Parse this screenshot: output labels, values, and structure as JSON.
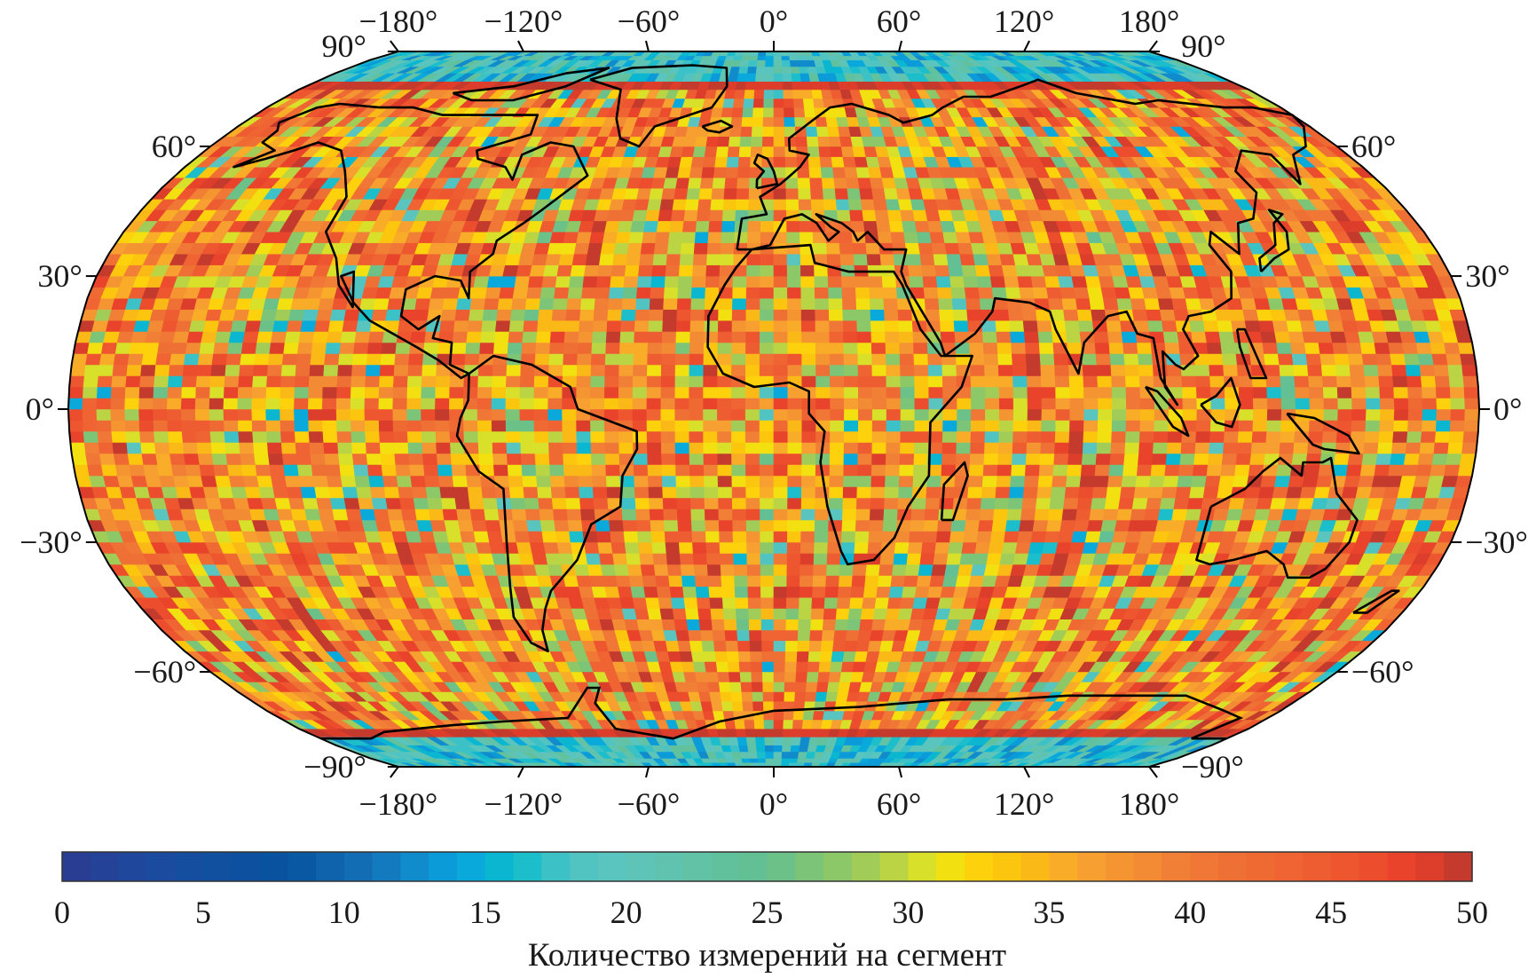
{
  "chart_data": {
    "type": "heatmap",
    "projection": "Robinson",
    "grid": false,
    "lon_ticks": [
      "−180°",
      "−120°",
      "−60°",
      "0°",
      "60°",
      "120°",
      "180°"
    ],
    "lon_tick_values": [
      -180,
      -120,
      -60,
      0,
      60,
      120,
      180
    ],
    "lat_ticks": [
      "90°",
      "60°",
      "30°",
      "0°",
      "−30°",
      "−60°",
      "−90°"
    ],
    "lat_tick_values": [
      90,
      60,
      30,
      0,
      -30,
      -60,
      -90
    ],
    "value_range": [
      0,
      50
    ],
    "colorbar": {
      "placement": "bottom",
      "label": "Количество измерений на сегмент",
      "ticks": [
        "0",
        "5",
        "10",
        "15",
        "20",
        "25",
        "30",
        "35",
        "40",
        "45",
        "50"
      ],
      "tick_values": [
        0,
        5,
        10,
        15,
        20,
        25,
        30,
        35,
        40,
        45,
        50
      ],
      "colormap": [
        [
          0,
          "#2b3a8f"
        ],
        [
          3,
          "#1c4a9e"
        ],
        [
          8,
          "#0653a0"
        ],
        [
          11,
          "#1672b8"
        ],
        [
          14,
          "#0aa3e0"
        ],
        [
          16,
          "#0bbccc"
        ],
        [
          18,
          "#4cc4c4"
        ],
        [
          20,
          "#5ec4bc"
        ],
        [
          25,
          "#63c090"
        ],
        [
          28,
          "#94c860"
        ],
        [
          30,
          "#c8d83a"
        ],
        [
          31,
          "#e8e818"
        ],
        [
          32,
          "#fdd80a"
        ],
        [
          34,
          "#fcc010"
        ],
        [
          36,
          "#f8a530"
        ],
        [
          40,
          "#f07a36"
        ],
        [
          45,
          "#ee5a30"
        ],
        [
          48,
          "#e8402a"
        ],
        [
          50,
          "#b8382c"
        ]
      ]
    },
    "coastline_color": "#000000"
  }
}
